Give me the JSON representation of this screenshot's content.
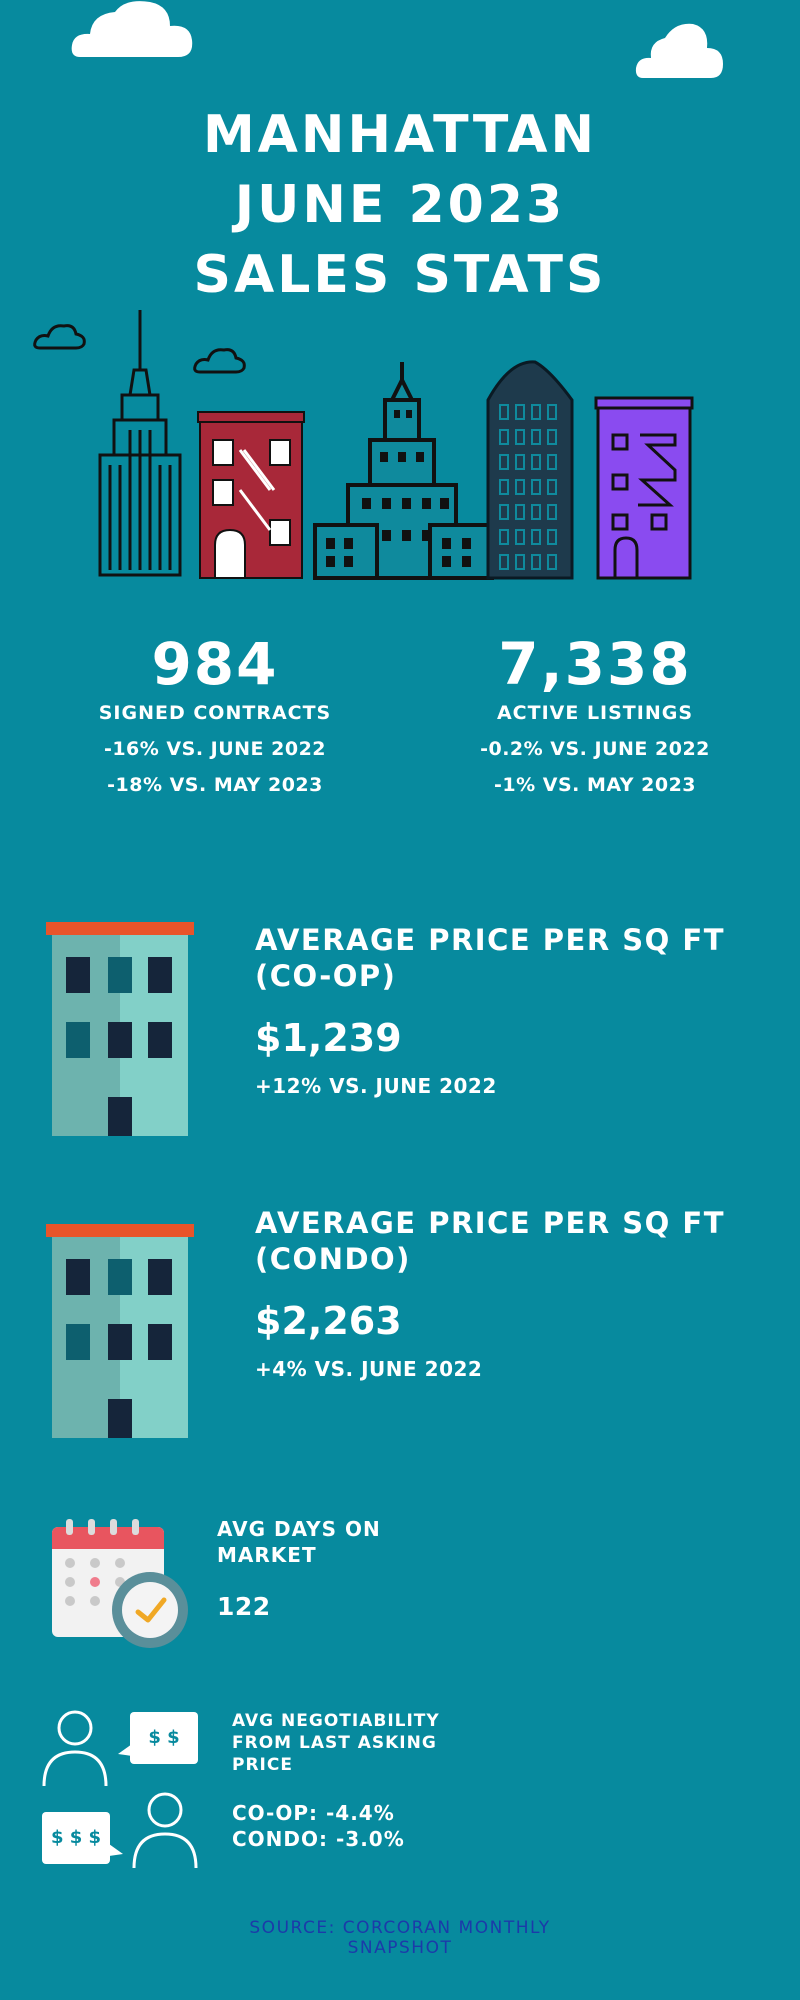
{
  "title": {
    "line1": "MANHATTAN",
    "line2": "JUNE 2023",
    "line3": "SALES STATS"
  },
  "contracts": {
    "value": "984",
    "label": "SIGNED CONTRACTS",
    "vs_year": "-16% VS. JUNE 2022",
    "vs_month": "-18% VS. MAY 2023"
  },
  "listings": {
    "value": "7,338",
    "label": "ACTIVE LISTINGS",
    "vs_year": "-0.2% VS. JUNE 2022",
    "vs_month": "-1% VS. MAY 2023"
  },
  "coop_price": {
    "title_line1": "AVERAGE PRICE PER SQ FT",
    "title_line2": "(CO-OP)",
    "value": "$1,239",
    "change": "+12% VS. JUNE 2022"
  },
  "condo_price": {
    "title_line1": "AVERAGE PRICE PER SQ FT",
    "title_line2": "(CONDO)",
    "value": "$2,263",
    "change": "+4% VS. JUNE 2022"
  },
  "days_on_market": {
    "title_line1": "AVG DAYS ON",
    "title_line2": "MARKET",
    "value": "122"
  },
  "negotiability": {
    "title_line1": "AVG NEGOTIABILITY",
    "title_line2": "FROM LAST ASKING",
    "title_line3": "PRICE",
    "coop": "CO-OP: -4.4%",
    "condo": "CONDO: -3.0%",
    "bubble_top": "$ $",
    "bubble_bottom": "$ $ $"
  },
  "source": {
    "line1": "SOURCE: CORCORAN MONTHLY",
    "line2": "SNAPSHOT"
  },
  "colors": {
    "background": "#078a9e",
    "source_text": "#1c3aa9",
    "building_red": "#a82839",
    "building_purple": "#8a4bf0",
    "building_teal": "#0f8a9d",
    "roof_orange": "#e8542a"
  },
  "icons": [
    "cloud-icon",
    "empire-state-icon",
    "brick-building-icon",
    "skyscraper-icon",
    "flatiron-icon",
    "purple-building-icon",
    "apartment-building-icon",
    "calendar-icon",
    "clock-icon",
    "person-icon",
    "speech-bubble-icon"
  ]
}
